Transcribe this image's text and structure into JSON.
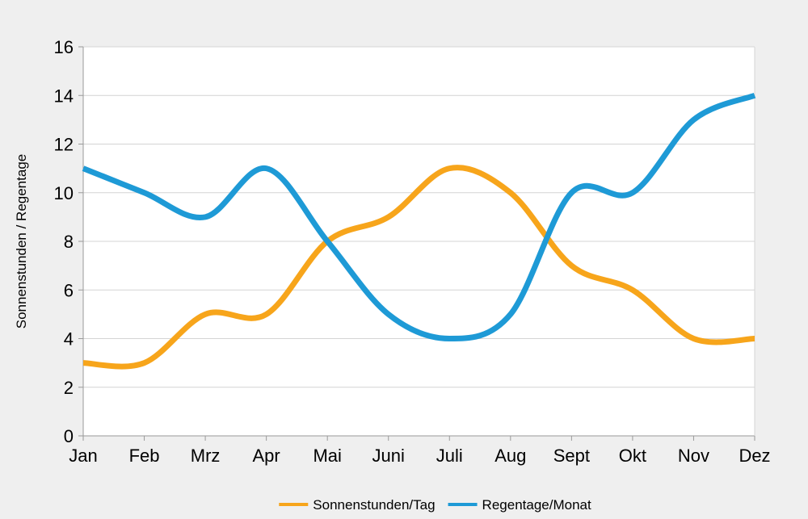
{
  "chart_data": {
    "type": "line",
    "title": "",
    "xlabel": "",
    "ylabel": "Sonnenstunden / Regentage",
    "categories": [
      "Jan",
      "Feb",
      "Mrz",
      "Apr",
      "Mai",
      "Juni",
      "Juli",
      "Aug",
      "Sept",
      "Okt",
      "Nov",
      "Dez"
    ],
    "ylim": [
      0,
      16
    ],
    "yticks": [
      "0",
      "2",
      "4",
      "6",
      "8",
      "10",
      "12",
      "14",
      "16"
    ],
    "grid": true,
    "legend_position": "bottom",
    "smooth": true,
    "series": [
      {
        "name": "Sonnenstunden/Tag",
        "color": "#f7a51b",
        "values": [
          3,
          3,
          5,
          5,
          8,
          9,
          11,
          10,
          7,
          6,
          4,
          4
        ]
      },
      {
        "name": "Regentage/Monat",
        "color": "#1e9ad6",
        "values": [
          11,
          10,
          9,
          11,
          8,
          5,
          4,
          5,
          10,
          10,
          13,
          14
        ]
      }
    ]
  }
}
